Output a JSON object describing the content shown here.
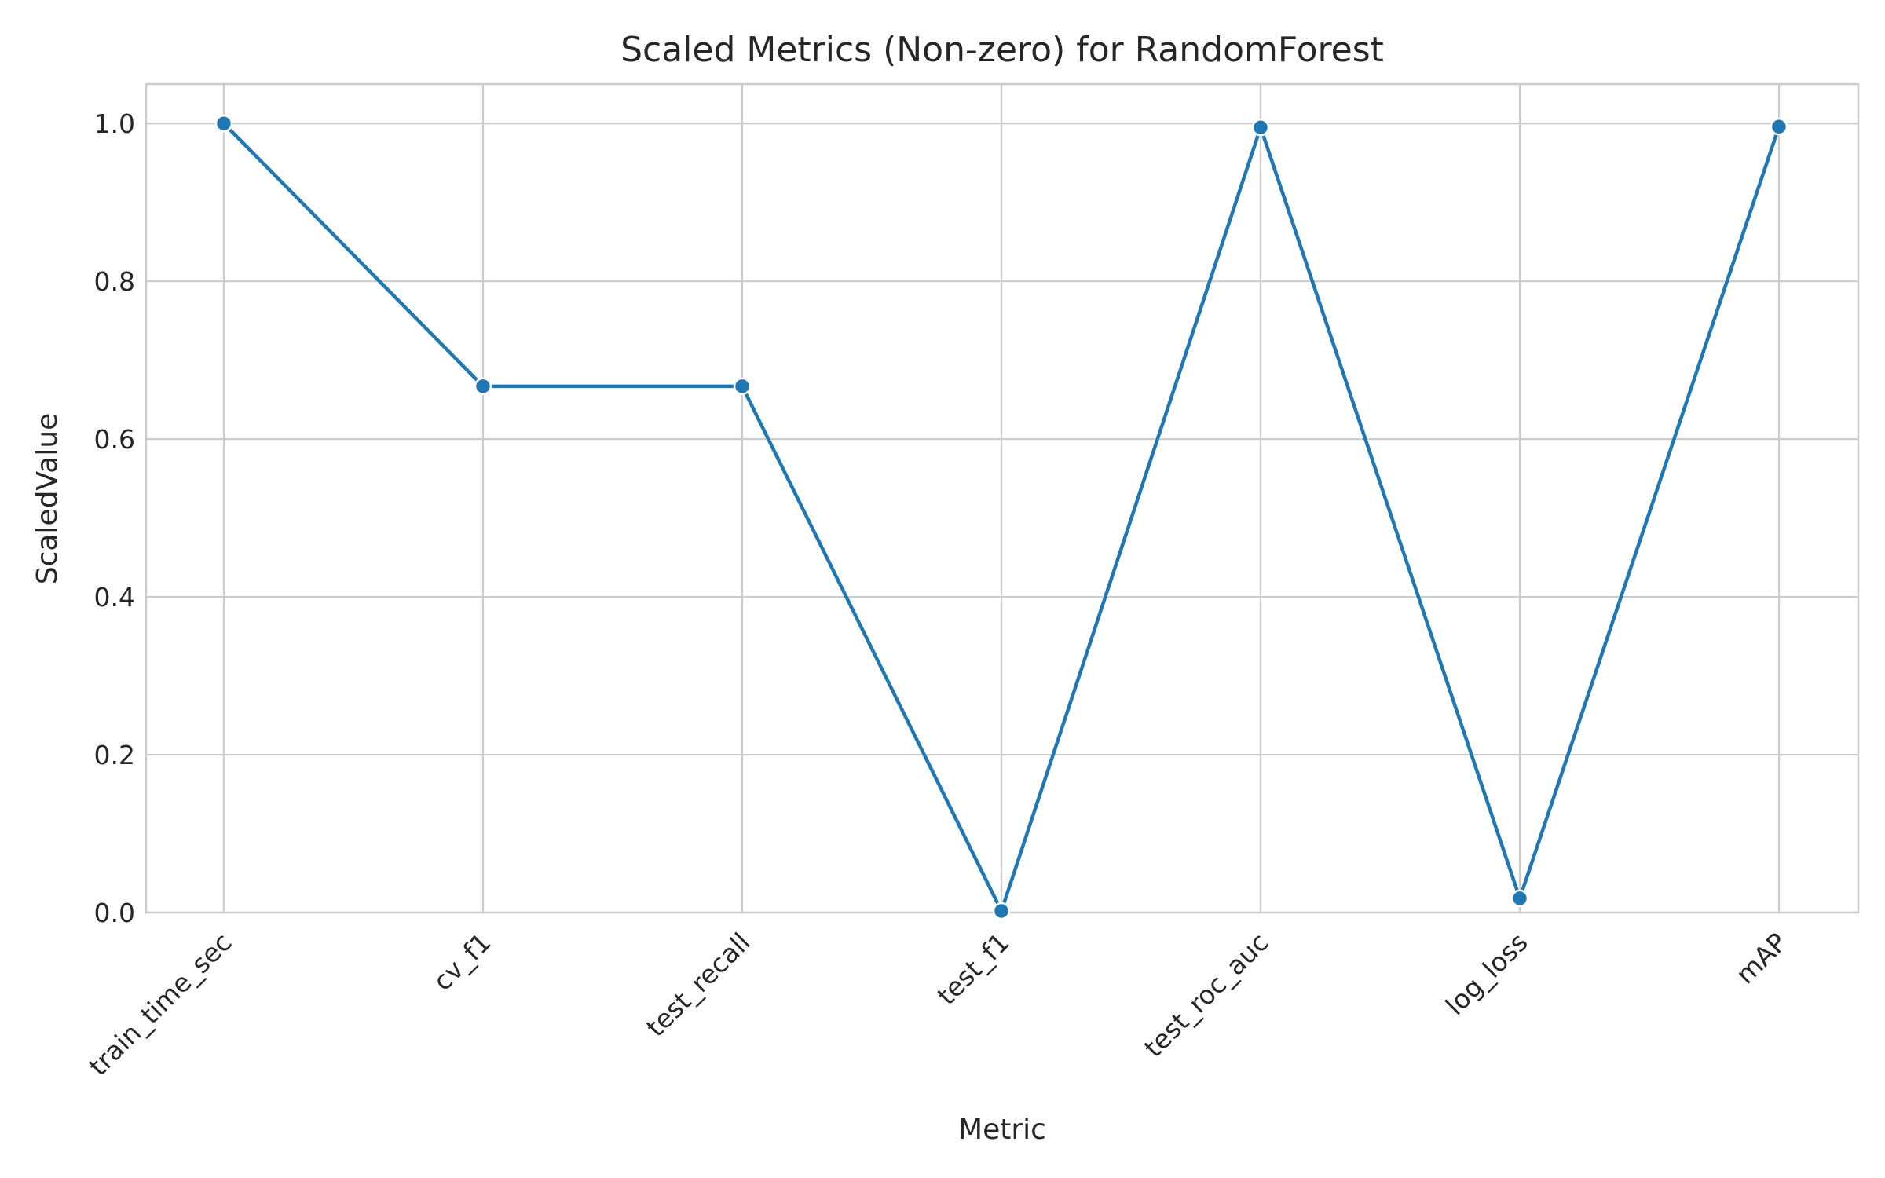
{
  "chart_data": {
    "type": "line",
    "title": "Scaled Metrics (Non-zero) for RandomForest",
    "xlabel": "Metric",
    "ylabel": "ScaledValue",
    "categories": [
      "train_time_sec",
      "cv_f1",
      "test_recall",
      "test_f1",
      "test_roc_auc",
      "log_loss",
      "mAP"
    ],
    "series": [
      {
        "values": [
          1.0,
          0.667,
          0.667,
          0.002,
          0.995,
          0.018,
          0.996
        ]
      }
    ],
    "ylim": [
      0.0,
      1.05
    ],
    "yticks": [
      "0.0",
      "0.2",
      "0.4",
      "0.6",
      "0.8",
      "1.0"
    ],
    "ytick_values": [
      0.0,
      0.2,
      0.4,
      0.6,
      0.8,
      1.0
    ],
    "grid": true,
    "markers": true,
    "colors": {
      "line": "#1f77b4",
      "grid": "#cccccc",
      "text": "#262626"
    }
  }
}
